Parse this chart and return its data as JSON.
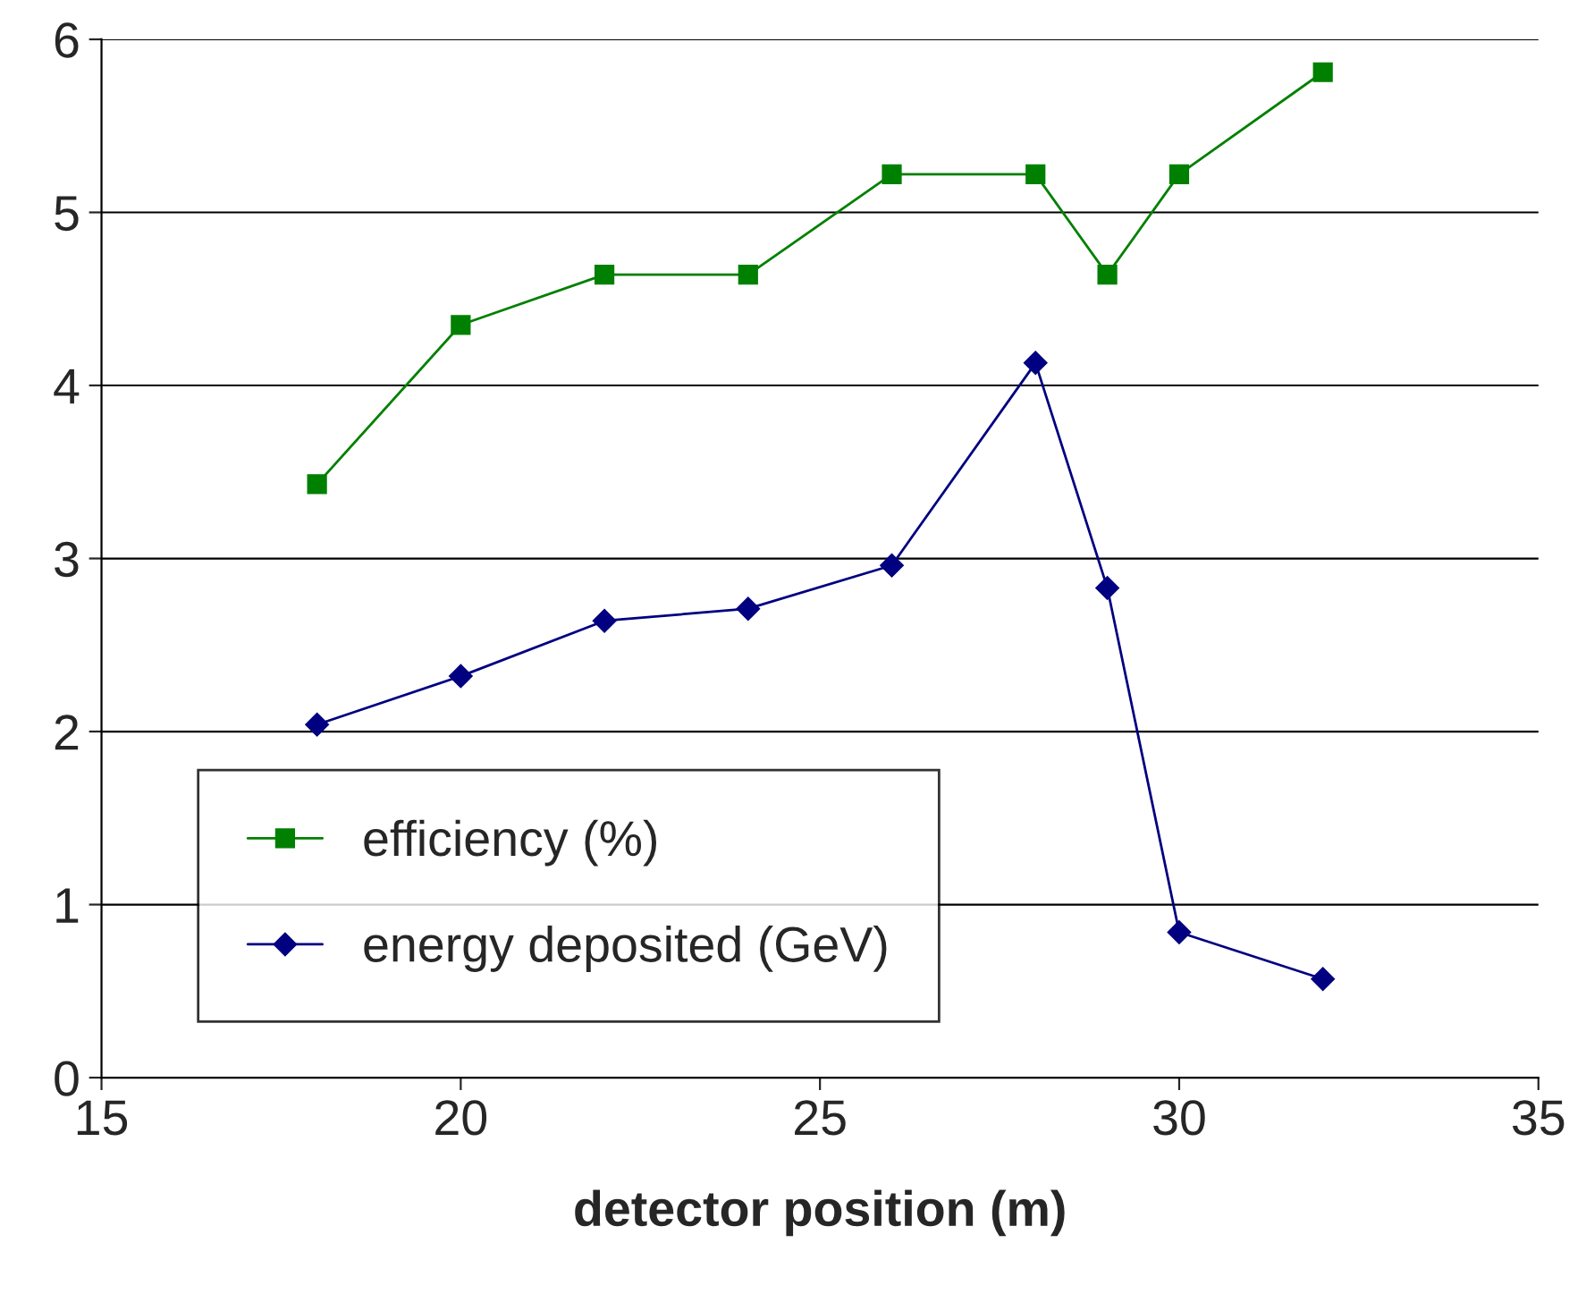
{
  "chart_data": {
    "type": "line",
    "xlabel": "detector position (m)",
    "x": [
      18,
      20,
      22,
      24,
      26,
      28,
      29,
      30,
      32
    ],
    "series": [
      {
        "name": "efficiency (%)",
        "color": "#008000",
        "marker": "square",
        "values": [
          3.43,
          4.35,
          4.64,
          4.64,
          5.22,
          5.22,
          4.64,
          5.22,
          5.81
        ]
      },
      {
        "name": "energy deposited (GeV)",
        "color": "#000080",
        "marker": "diamond",
        "values": [
          2.04,
          2.32,
          2.64,
          2.71,
          2.96,
          4.13,
          2.83,
          0.84,
          0.57
        ]
      }
    ],
    "xlim": [
      15,
      35
    ],
    "xticks": [
      15,
      20,
      25,
      30,
      35
    ],
    "ylim": [
      0,
      6
    ],
    "yticks": [
      0,
      1,
      2,
      3,
      4,
      5,
      6
    ],
    "grid": "y",
    "legend": "bottom left",
    "line_style": "solid"
  }
}
